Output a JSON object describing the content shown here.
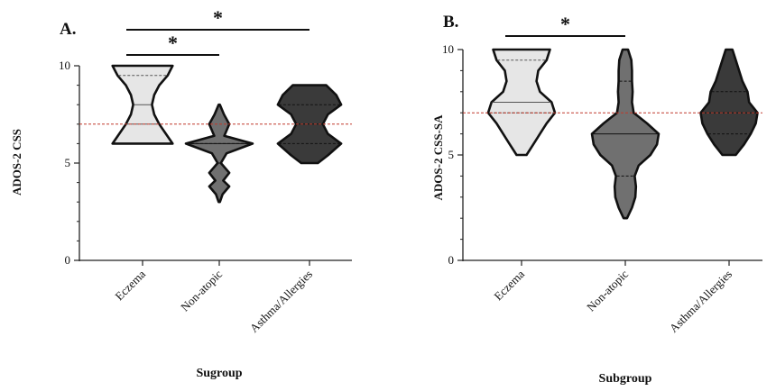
{
  "chart_data": [
    {
      "type": "violin",
      "panel_label": "A.",
      "xlabel": "Sugroup",
      "ylabel": "ADOS-2 CSS",
      "ylim": [
        0,
        10
      ],
      "yticks": [
        "0",
        "5",
        "10"
      ],
      "categories": [
        "Eczema",
        "Non-atopic",
        "Asthma/Allergies"
      ],
      "reference_line": 7,
      "reference_color": "#c0392b",
      "fills": [
        "#e6e6e6",
        "#707070",
        "#3a3a3a"
      ],
      "violins": [
        {
          "name": "Eczema",
          "min": 6,
          "max": 10,
          "median": 8,
          "q1": 7,
          "q3": 9.5,
          "profile": [
            [
              6,
              0.9
            ],
            [
              6.5,
              0.7
            ],
            [
              7,
              0.5
            ],
            [
              7.5,
              0.35
            ],
            [
              8,
              0.28
            ],
            [
              8.5,
              0.35
            ],
            [
              9,
              0.5
            ],
            [
              9.5,
              0.75
            ],
            [
              10,
              0.9
            ]
          ]
        },
        {
          "name": "Non-atopic",
          "min": 3,
          "max": 8,
          "median": 6,
          "q1": 5,
          "q3": 6,
          "profile": [
            [
              3,
              0.02
            ],
            [
              3.4,
              0.1
            ],
            [
              3.8,
              0.3
            ],
            [
              4.1,
              0.12
            ],
            [
              4.5,
              0.3
            ],
            [
              5.0,
              0.05
            ],
            [
              5.5,
              0.22
            ],
            [
              6.0,
              1.0
            ],
            [
              6.4,
              0.15
            ],
            [
              7.0,
              0.3
            ],
            [
              7.5,
              0.14
            ],
            [
              8.0,
              0.02
            ]
          ]
        },
        {
          "name": "Asthma/Allergies",
          "min": 5,
          "max": 9,
          "median": 7,
          "q1": 6,
          "q3": 8,
          "profile": [
            [
              5,
              0.25
            ],
            [
              5.4,
              0.55
            ],
            [
              6,
              0.95
            ],
            [
              6.5,
              0.55
            ],
            [
              7,
              0.4
            ],
            [
              7.5,
              0.55
            ],
            [
              8,
              0.95
            ],
            [
              8.5,
              0.8
            ],
            [
              9,
              0.5
            ]
          ]
        }
      ],
      "significance": [
        {
          "from": "Eczema",
          "to": "Non-atopic",
          "label": "*"
        },
        {
          "from": "Eczema",
          "to": "Asthma/Allergies",
          "label": "*"
        }
      ]
    },
    {
      "type": "violin",
      "panel_label": "B.",
      "xlabel": "Subgroup",
      "ylabel": "ADOS-2 CSS-SA",
      "ylim": [
        0,
        10
      ],
      "yticks": [
        "0",
        "5",
        "10"
      ],
      "categories": [
        "Eczema",
        "Non-atopic",
        "Asthma/Allergies"
      ],
      "reference_line": 7,
      "reference_color": "#c0392b",
      "fills": [
        "#e6e6e6",
        "#707070",
        "#3a3a3a"
      ],
      "violins": [
        {
          "name": "Eczema",
          "min": 5,
          "max": 10,
          "median": 7.5,
          "q1": 7,
          "q3": 9.5,
          "profile": [
            [
              5,
              0.15
            ],
            [
              5.5,
              0.35
            ],
            [
              6,
              0.55
            ],
            [
              6.5,
              0.75
            ],
            [
              7,
              1.0
            ],
            [
              7.5,
              0.9
            ],
            [
              8,
              0.55
            ],
            [
              8.5,
              0.45
            ],
            [
              9,
              0.5
            ],
            [
              9.5,
              0.75
            ],
            [
              10,
              0.85
            ]
          ]
        },
        {
          "name": "Non-atopic",
          "min": 2,
          "max": 10,
          "median": 6,
          "q1": 4,
          "q3": 8.5,
          "profile": [
            [
              2,
              0.05
            ],
            [
              2.5,
              0.2
            ],
            [
              3,
              0.3
            ],
            [
              3.5,
              0.32
            ],
            [
              4,
              0.28
            ],
            [
              4.5,
              0.4
            ],
            [
              5,
              0.75
            ],
            [
              5.5,
              0.95
            ],
            [
              6,
              1.0
            ],
            [
              6.5,
              0.65
            ],
            [
              7,
              0.25
            ],
            [
              7.5,
              0.2
            ],
            [
              8,
              0.22
            ],
            [
              8.5,
              0.2
            ],
            [
              9,
              0.2
            ],
            [
              9.5,
              0.18
            ],
            [
              10,
              0.08
            ]
          ]
        },
        {
          "name": "Asthma/Allergies",
          "min": 5,
          "max": 10,
          "median": 7,
          "q1": 6,
          "q3": 8,
          "profile": [
            [
              5,
              0.2
            ],
            [
              5.5,
              0.45
            ],
            [
              6,
              0.65
            ],
            [
              6.5,
              0.8
            ],
            [
              7,
              0.85
            ],
            [
              7.5,
              0.6
            ],
            [
              8,
              0.55
            ],
            [
              8.5,
              0.4
            ],
            [
              9,
              0.3
            ],
            [
              9.5,
              0.2
            ],
            [
              10,
              0.1
            ]
          ]
        }
      ],
      "significance": [
        {
          "from": "Eczema",
          "to": "Non-atopic",
          "label": "*"
        }
      ]
    }
  ]
}
